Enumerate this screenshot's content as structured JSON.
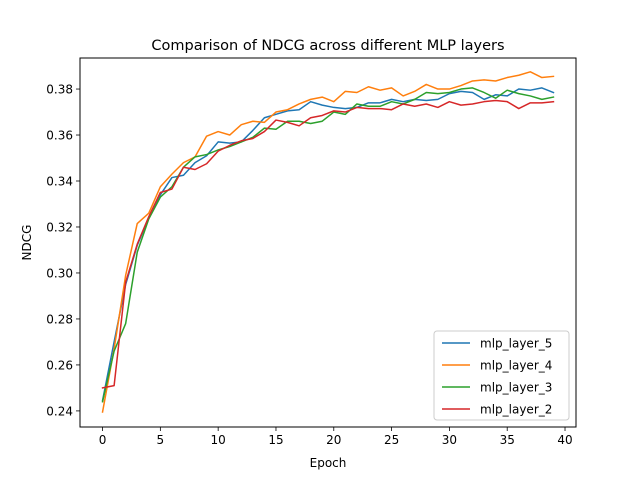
{
  "chart_data": {
    "type": "line",
    "title": "Comparison of NDCG across different MLP layers",
    "xlabel": "Epoch",
    "ylabel": "NDCG",
    "xlim": [
      -1.95,
      40.95
    ],
    "ylim": [
      0.233,
      0.3935
    ],
    "xticks": [
      0,
      5,
      10,
      15,
      20,
      25,
      30,
      35,
      40
    ],
    "xtick_labels": [
      "0",
      "5",
      "10",
      "15",
      "20",
      "25",
      "30",
      "35",
      "40"
    ],
    "yticks": [
      0.24,
      0.26,
      0.28,
      0.3,
      0.32,
      0.34,
      0.36,
      0.38
    ],
    "ytick_labels": [
      "0.24",
      "0.26",
      "0.28",
      "0.30",
      "0.32",
      "0.34",
      "0.36",
      "0.38"
    ],
    "grid": false,
    "legend_position": "lower-right",
    "x": [
      0,
      1,
      2,
      3,
      4,
      5,
      6,
      7,
      8,
      9,
      10,
      11,
      12,
      13,
      14,
      15,
      16,
      17,
      18,
      19,
      20,
      21,
      22,
      23,
      24,
      25,
      26,
      27,
      28,
      29,
      30,
      31,
      32,
      33,
      34,
      35,
      36,
      37,
      38,
      39
    ],
    "series": [
      {
        "name": "mlp_layer_5",
        "color": "#1f77b4",
        "values": [
          0.2445,
          0.27,
          0.295,
          0.312,
          0.324,
          0.334,
          0.3415,
          0.3425,
          0.348,
          0.351,
          0.357,
          0.3565,
          0.357,
          0.362,
          0.3675,
          0.369,
          0.3705,
          0.371,
          0.3745,
          0.373,
          0.372,
          0.3715,
          0.372,
          0.374,
          0.374,
          0.3755,
          0.3745,
          0.3755,
          0.375,
          0.3755,
          0.378,
          0.379,
          0.3785,
          0.3755,
          0.3775,
          0.377,
          0.38,
          0.3795,
          0.3805,
          0.3785
        ]
      },
      {
        "name": "mlp_layer_4",
        "color": "#ff7f0e",
        "values": [
          0.2395,
          0.267,
          0.299,
          0.3215,
          0.326,
          0.3375,
          0.343,
          0.348,
          0.3505,
          0.3595,
          0.3615,
          0.36,
          0.3645,
          0.366,
          0.3655,
          0.37,
          0.371,
          0.3735,
          0.3755,
          0.3765,
          0.3745,
          0.379,
          0.3785,
          0.381,
          0.3795,
          0.3805,
          0.377,
          0.379,
          0.382,
          0.38,
          0.38,
          0.3815,
          0.3835,
          0.384,
          0.3835,
          0.385,
          0.386,
          0.3875,
          0.385,
          0.3855
        ]
      },
      {
        "name": "mlp_layer_3",
        "color": "#2ca02c",
        "values": [
          0.244,
          0.266,
          0.278,
          0.309,
          0.3235,
          0.333,
          0.3375,
          0.346,
          0.3505,
          0.3515,
          0.3535,
          0.355,
          0.357,
          0.359,
          0.363,
          0.3625,
          0.366,
          0.366,
          0.365,
          0.366,
          0.37,
          0.369,
          0.3735,
          0.3725,
          0.3725,
          0.3745,
          0.3735,
          0.3755,
          0.3785,
          0.378,
          0.3785,
          0.38,
          0.3805,
          0.3785,
          0.376,
          0.3795,
          0.378,
          0.377,
          0.3755,
          0.3765
        ]
      },
      {
        "name": "mlp_layer_2",
        "color": "#d62728",
        "values": [
          0.25,
          0.251,
          0.296,
          0.3125,
          0.3245,
          0.335,
          0.3365,
          0.346,
          0.345,
          0.3475,
          0.353,
          0.3555,
          0.3575,
          0.3585,
          0.3615,
          0.3665,
          0.3655,
          0.364,
          0.3675,
          0.3685,
          0.3705,
          0.37,
          0.372,
          0.3715,
          0.3715,
          0.371,
          0.3735,
          0.3725,
          0.3735,
          0.372,
          0.3745,
          0.373,
          0.3735,
          0.3745,
          0.375,
          0.3745,
          0.3715,
          0.374,
          0.374,
          0.3745
        ]
      }
    ]
  }
}
